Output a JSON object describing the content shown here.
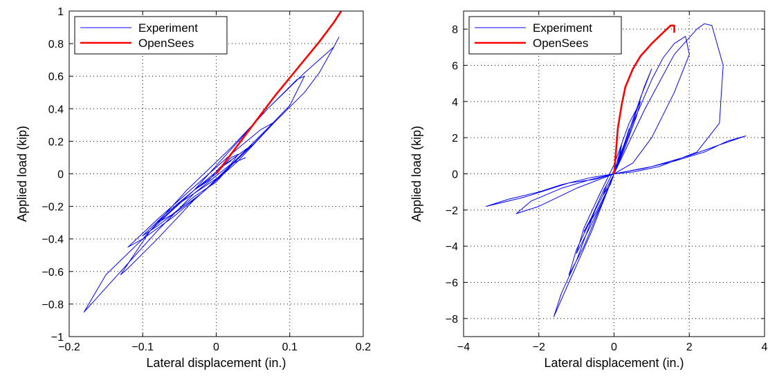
{
  "chart_data": [
    {
      "type": "line",
      "xlabel": "Lateral displacement (in.)",
      "ylabel": "Applied load (kip)",
      "xlim": [
        -0.2,
        0.2
      ],
      "ylim": [
        -1,
        1
      ],
      "xticks": [
        -0.2,
        -0.1,
        0,
        0.1,
        0.2
      ],
      "xtick_labels": [
        "−0.2",
        "−0.1",
        "0",
        "0.1",
        "0.2"
      ],
      "yticks": [
        -1,
        -0.8,
        -0.6,
        -0.4,
        -0.2,
        0,
        0.2,
        0.4,
        0.6,
        0.8,
        1
      ],
      "ytick_labels": [
        "−1",
        "−0.8",
        "−0.6",
        "−0.4",
        "−0.2",
        "0",
        "0.2",
        "0.4",
        "0.6",
        "0.8",
        "1"
      ],
      "grid": true,
      "legend_position": "top-left",
      "series": [
        {
          "name": "Experiment",
          "color": "#0000ff",
          "x": [
            0,
            0.01,
            0.02,
            0.005,
            -0.01,
            -0.03,
            -0.05,
            -0.03,
            -0.01,
            0.01,
            0.03,
            0.02,
            0,
            -0.03,
            -0.06,
            -0.08,
            -0.06,
            -0.03,
            0,
            0.03,
            0.05,
            0.04,
            0.01,
            -0.03,
            -0.07,
            -0.1,
            -0.08,
            -0.05,
            -0.02,
            0.02,
            0.05,
            0.08,
            0.06,
            0.02,
            -0.03,
            -0.08,
            -0.12,
            -0.1,
            -0.06,
            -0.02,
            0.03,
            0.07,
            0.1,
            0.12,
            0.11,
            0.07,
            0.02,
            -0.03,
            -0.09,
            -0.13,
            -0.12,
            -0.08,
            -0.03,
            0.03,
            0.08,
            0.12,
            0.14,
            0.16,
            0.167,
            0.16,
            0.12,
            0.07,
            0.02,
            -0.04,
            -0.1,
            -0.15,
            -0.18,
            -0.17,
            -0.13,
            -0.08,
            -0.03,
            0.02,
            0.04
          ],
          "y": [
            0,
            0.05,
            0.08,
            0.04,
            -0.04,
            -0.1,
            -0.18,
            -0.12,
            -0.06,
            0,
            0.12,
            0.1,
            0,
            -0.1,
            -0.22,
            -0.3,
            -0.25,
            -0.14,
            -0.05,
            0.1,
            0.18,
            0.15,
            0.05,
            -0.1,
            -0.25,
            -0.38,
            -0.32,
            -0.22,
            -0.12,
            0.05,
            0.18,
            0.32,
            0.27,
            0.12,
            -0.08,
            -0.28,
            -0.45,
            -0.4,
            -0.27,
            -0.12,
            0.1,
            0.28,
            0.42,
            0.6,
            0.58,
            0.4,
            0.15,
            -0.1,
            -0.35,
            -0.62,
            -0.58,
            -0.4,
            -0.16,
            0.08,
            0.32,
            0.5,
            0.62,
            0.78,
            0.84,
            0.78,
            0.62,
            0.4,
            0.16,
            -0.1,
            -0.4,
            -0.62,
            -0.85,
            -0.8,
            -0.6,
            -0.35,
            -0.12,
            0.06,
            0.1
          ]
        },
        {
          "name": "OpenSees",
          "color": "#ff0000",
          "x": [
            0,
            0.02,
            0.05,
            0.08,
            0.1,
            0.12,
            0.14,
            0.16,
            0.17
          ],
          "y": [
            0,
            0.12,
            0.3,
            0.48,
            0.59,
            0.7,
            0.81,
            0.93,
            1.0
          ]
        }
      ]
    },
    {
      "type": "line",
      "xlabel": "Lateral displacement (in.)",
      "ylabel": "Applied load (kip)",
      "xlim": [
        -4,
        4
      ],
      "ylim": [
        -9,
        9
      ],
      "xticks": [
        -4,
        -2,
        0,
        2,
        4
      ],
      "xtick_labels": [
        "−4",
        "−2",
        "0",
        "2",
        "4"
      ],
      "yticks": [
        -8,
        -6,
        -4,
        -2,
        0,
        2,
        4,
        6,
        8
      ],
      "ytick_labels": [
        "−8",
        "−6",
        "−4",
        "−2",
        "0",
        "2",
        "4",
        "6",
        "8"
      ],
      "grid": true,
      "legend_position": "top-left",
      "series": [
        {
          "name": "Experiment",
          "color": "#0000ff",
          "x": [
            0,
            0.1,
            0.2,
            0.15,
            0,
            -0.2,
            -0.3,
            -0.1,
            0,
            0.2,
            0.4,
            0.3,
            0,
            -0.3,
            -0.6,
            -0.8,
            -0.5,
            -0.2,
            0,
            0.3,
            0.6,
            0.7,
            0.4,
            0,
            -0.4,
            -0.8,
            -1.0,
            -0.7,
            -0.3,
            0,
            0.4,
            0.8,
            1.0,
            0.7,
            0.3,
            0,
            -0.5,
            -1.0,
            -1.2,
            -0.8,
            -0.4,
            0,
            0.5,
            1.0,
            1.3,
            1.6,
            1.9,
            2.0,
            1.6,
            1.0,
            0.5,
            0,
            -0.5,
            -1.0,
            -1.4,
            -1.6,
            -1.2,
            -0.6,
            0,
            0.8,
            1.6,
            2.2,
            2.4,
            2.6,
            2.9,
            2.8,
            2.2,
            1.2,
            0.5,
            0,
            -0.5,
            -1.2,
            -1.8,
            -2.4,
            -3.0,
            -3.4,
            -2.8,
            -2.0,
            -1.4,
            -0.6,
            0,
            0.8,
            1.6,
            2.4,
            3.0,
            3.5,
            2.8,
            2.0,
            1.0,
            0,
            -0.6,
            -1.4,
            -2.2,
            -2.6,
            -2.0,
            -1.0,
            0
          ],
          "y": [
            0,
            0.8,
            1.6,
            1.0,
            0.2,
            -0.6,
            -1.2,
            -0.6,
            0,
            1.2,
            2.5,
            1.8,
            0.2,
            -1.0,
            -2.4,
            -3.2,
            -2.2,
            -1.0,
            0,
            1.5,
            3.2,
            4.0,
            2.8,
            0.5,
            -1.2,
            -3.0,
            -4.4,
            -3.2,
            -1.5,
            0,
            2.2,
            4.8,
            5.8,
            4.2,
            1.8,
            0,
            -2.0,
            -4.2,
            -5.6,
            -4.0,
            -2.0,
            0,
            2.8,
            5.2,
            6.4,
            7.2,
            7.6,
            6.6,
            4.5,
            2.0,
            0.6,
            0,
            -2.0,
            -4.8,
            -6.6,
            -7.9,
            -6.0,
            -3.2,
            0,
            3.5,
            6.6,
            8.0,
            8.3,
            8.2,
            6.0,
            2.8,
            1.2,
            0.4,
            0.1,
            0,
            -0.3,
            -0.5,
            -0.9,
            -1.3,
            -1.6,
            -1.8,
            -1.4,
            -1.0,
            -0.6,
            -0.2,
            0,
            0.3,
            0.7,
            1.2,
            1.8,
            2.1,
            1.6,
            1.0,
            0.4,
            0,
            -0.3,
            -0.8,
            -1.5,
            -2.2,
            -1.8,
            -0.8,
            0
          ]
        },
        {
          "name": "OpenSees",
          "color": "#ff0000",
          "x": [
            0,
            0.05,
            0.1,
            0.2,
            0.3,
            0.5,
            0.7,
            1.0,
            1.2,
            1.4,
            1.5,
            1.6,
            1.6
          ],
          "y": [
            0,
            1.2,
            2.5,
            3.8,
            4.8,
            5.8,
            6.5,
            7.2,
            7.6,
            8.0,
            8.2,
            8.2,
            7.8
          ]
        }
      ]
    }
  ]
}
